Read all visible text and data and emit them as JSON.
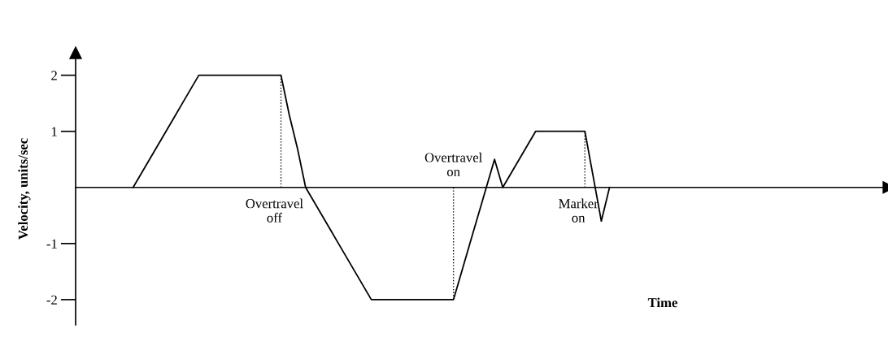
{
  "chart_data": {
    "type": "line",
    "xlabel": "Time",
    "ylabel": "Velocity, units/sec",
    "categories": [
      null,
      null,
      null,
      null,
      null,
      null,
      null,
      null,
      null,
      null,
      null,
      null,
      null,
      null,
      null,
      null,
      null,
      null,
      null,
      null,
      null,
      null,
      null,
      null,
      null,
      null,
      null,
      null,
      null,
      null,
      null,
      null,
      null,
      null,
      null,
      null,
      null,
      null,
      null,
      null,
      null,
      null,
      null,
      null,
      null,
      null,
      null,
      null,
      null,
      null,
      null,
      null,
      null,
      null,
      null,
      null,
      null,
      null,
      null,
      null,
      null,
      null,
      null,
      null,
      null,
      null,
      null,
      null,
      null,
      null,
      null,
      null,
      null,
      null,
      null,
      null,
      null,
      null,
      null,
      null,
      null,
      null,
      null,
      null,
      null,
      null,
      null,
      null,
      null,
      null,
      null,
      null,
      null,
      null,
      null,
      null,
      null,
      null,
      null,
      null
    ],
    "ylim": [
      -2.45,
      2.4
    ],
    "yticks": [
      {
        "value": -2,
        "label": "-2"
      },
      {
        "value": -1,
        "label": "-1"
      },
      1,
      2
    ],
    "tick_labels": "y",
    "marker": "none",
    "line_style": "solid",
    "series": [
      {
        "color": "#000000",
        "values": [
          null,
          null,
          null,
          null,
          null,
          null,
          null,
          0,
          0.25,
          0.5,
          0.75,
          1,
          1.25,
          1.5,
          1.75,
          2,
          2,
          2,
          2,
          2,
          2,
          2,
          2,
          2,
          2,
          2,
          1.3,
          0.7,
          0,
          -0.25,
          -0.5,
          -0.75,
          -1,
          -1.25,
          -1.5,
          -1.75,
          -2,
          -2,
          -2,
          -2,
          -2,
          -2,
          -2,
          -2,
          -2,
          -2,
          -2,
          -1.5,
          -1,
          -0.5,
          0,
          0.5,
          0,
          0.25,
          0.5,
          0.75,
          1,
          1,
          1,
          1,
          1,
          1,
          1,
          0.2,
          -0.6,
          0,
          null,
          null,
          null,
          null,
          null,
          null,
          null,
          null,
          null,
          null,
          null,
          null,
          null,
          null,
          null,
          null,
          null,
          null,
          null,
          null,
          null,
          null,
          null,
          null,
          null,
          null,
          null,
          null,
          null,
          null,
          null,
          null,
          null,
          null
        ]
      }
    ],
    "annotations": [
      "Overtravel\noff",
      "Overtravel\non",
      "Marker\non"
    ]
  }
}
